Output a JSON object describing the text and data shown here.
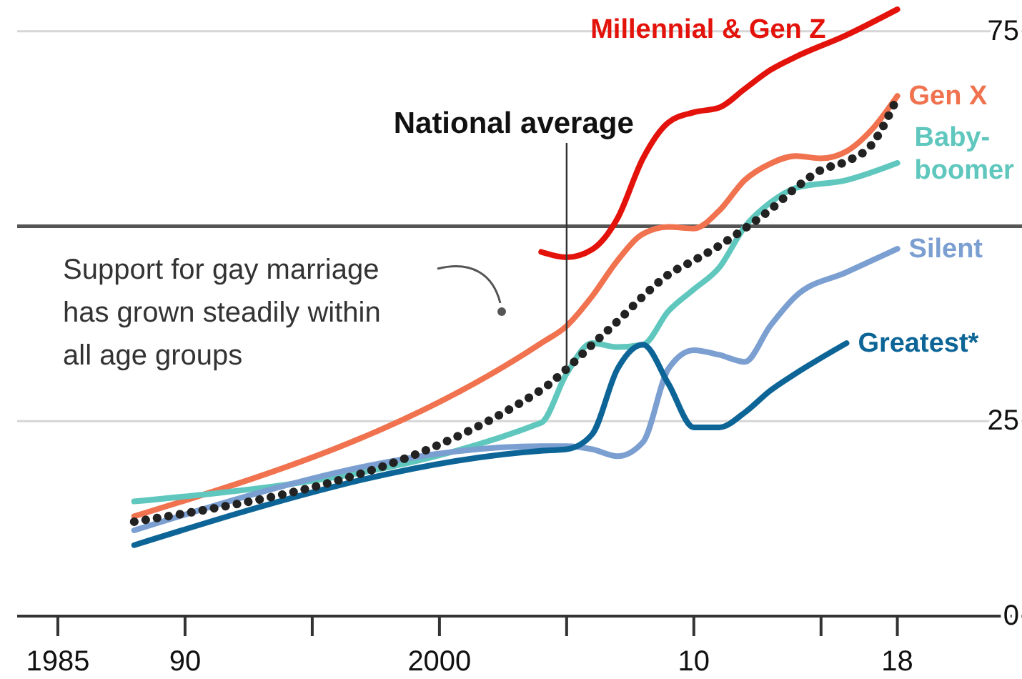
{
  "chart_data": {
    "type": "line",
    "x": [
      1988,
      2004,
      2005,
      2006,
      2007,
      2008,
      2009,
      2010,
      2011,
      2012,
      2013,
      2014,
      2015,
      2016,
      2017,
      2018
    ],
    "series": [
      {
        "name": "Millennial & Gen Z",
        "color": "#e3120b",
        "x": [
          2004,
          2005,
          2006,
          2007,
          2008,
          2009,
          2010,
          2011,
          2012,
          2013,
          2014,
          2016,
          2018
        ],
        "values": [
          46.7,
          46,
          47,
          51,
          58.7,
          63.3,
          64.6,
          65.2,
          67.6,
          70,
          71.7,
          74.5,
          77.8
        ]
      },
      {
        "name": "Gen X",
        "color": "#f0724f",
        "x": [
          1988,
          2004,
          2005,
          2006,
          2007,
          2008,
          2009,
          2010,
          2011,
          2012,
          2013,
          2014,
          2015,
          2016,
          2017,
          2018
        ],
        "values": [
          12.8,
          35,
          37.2,
          41,
          45.6,
          49,
          49.9,
          49.7,
          52,
          55.9,
          58,
          59,
          58.7,
          59.6,
          62.4,
          66.7
        ]
      },
      {
        "name": "Baby-boomer",
        "color": "#5fc7bd",
        "x": [
          1988,
          2004,
          2005,
          2006,
          2007,
          2008,
          2009,
          2010,
          2011,
          2012,
          2013,
          2014,
          2016,
          2018
        ],
        "values": [
          14.7,
          24.8,
          31.1,
          35,
          34.5,
          34.8,
          39.1,
          41.9,
          44.7,
          49.9,
          53,
          54.9,
          55.9,
          58.1
        ]
      },
      {
        "name": "Silent",
        "color": "#7b9fd1",
        "x": [
          1988,
          2004,
          2005,
          2006,
          2007,
          2008,
          2009,
          2010,
          2011,
          2012,
          2013,
          2014,
          2016,
          2018
        ],
        "values": [
          11,
          21.8,
          21.8,
          21.4,
          20.5,
          22.3,
          31.7,
          34.1,
          33.5,
          32.6,
          37.2,
          41,
          44.1,
          47.1
        ]
      },
      {
        "name": "Greatest*",
        "color": "#0d6597",
        "x": [
          1988,
          2004,
          2005,
          2006,
          2007,
          2008,
          2009,
          2010,
          2011,
          2012,
          2013,
          2014,
          2016
        ],
        "values": [
          9.1,
          21.2,
          21.4,
          23.3,
          31.7,
          34.8,
          29.8,
          24.2,
          24.2,
          26.1,
          28.9,
          31.1,
          35
        ]
      },
      {
        "color": "#222222",
        "line_style": "dotted",
        "values": [
          12.1,
          29,
          31.7,
          34.8,
          37.8,
          41,
          43.8,
          45.6,
          47.5,
          49.7,
          52.1,
          54.9,
          57.2,
          58.3,
          60.5,
          66.5
        ]
      }
    ],
    "xlim": [
      1983.4,
      2022.9
    ],
    "xticks": [
      1985,
      {
        "value": 1990,
        "label": "90"
      },
      {
        "value": 1995,
        "label": null
      },
      2000,
      {
        "value": 2005,
        "label": null
      },
      {
        "value": 2010,
        "label": "10"
      },
      {
        "value": 2015,
        "label": null
      },
      {
        "value": 2018,
        "label": "18"
      }
    ],
    "ylim": [
      0,
      79
    ],
    "yticks": [
      0,
      25,
      75
    ],
    "grid": "y",
    "ref_lines": [
      {
        "axis": "y",
        "value": 50,
        "color": "#555555"
      }
    ],
    "annotations": [
      {
        "text": "National average",
        "x": 2005,
        "y": 31.7
      },
      "Support for gay marriage has grown steadily within all age groups"
    ]
  }
}
